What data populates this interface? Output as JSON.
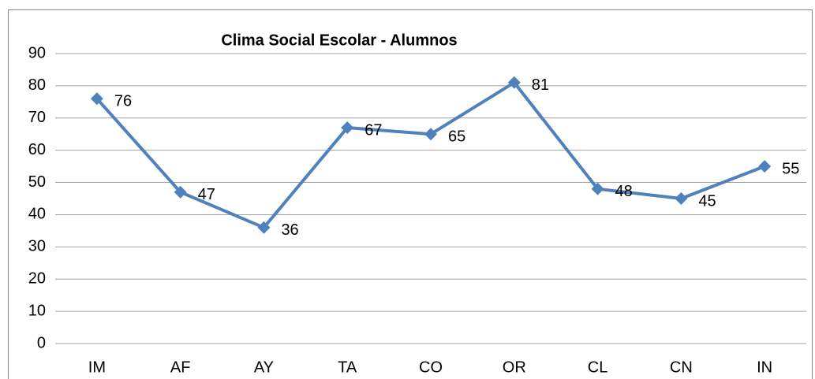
{
  "chart_data": {
    "type": "line",
    "title": "Clima Social Escolar - Alumnos",
    "categories": [
      "IM",
      "AF",
      "AY",
      "TA",
      "CO",
      "OR",
      "CL",
      "CN",
      "IN"
    ],
    "values": [
      76,
      47,
      36,
      67,
      65,
      81,
      48,
      45,
      55
    ],
    "color": "#4f81bd",
    "ylim": [
      0,
      90
    ],
    "yticks": [
      0,
      10,
      20,
      30,
      40,
      50,
      60,
      70,
      80,
      90
    ],
    "grid": true
  }
}
